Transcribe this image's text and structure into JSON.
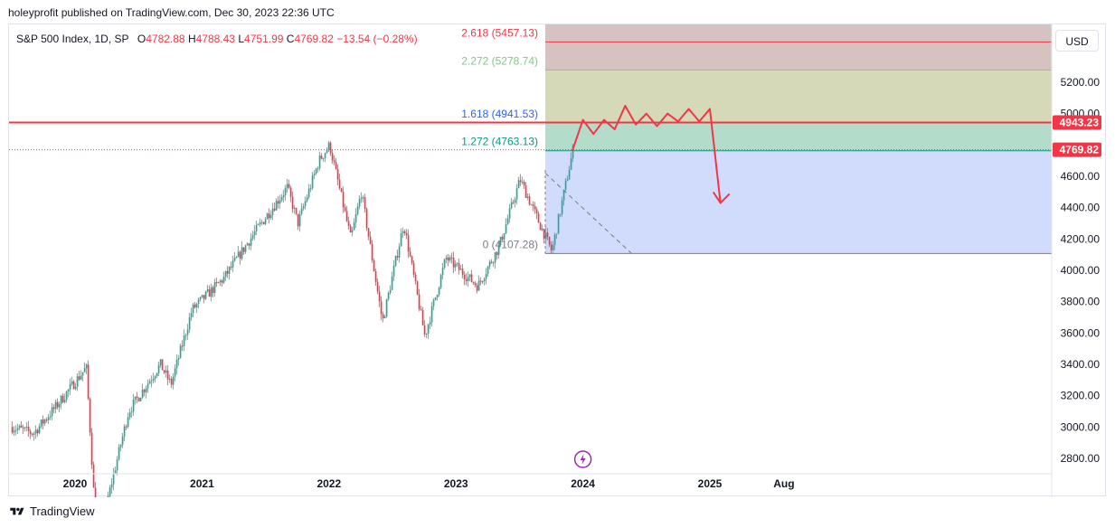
{
  "header": {
    "published": "holeyprofit published on TradingView.com, Dec 30, 2023 22:36 UTC"
  },
  "legend": {
    "symbol": "S&P 500 Index, 1D, SP",
    "open_label": "O",
    "open": "4782.88",
    "high_label": "H",
    "high": "4788.43",
    "low_label": "L",
    "low": "4751.99",
    "close_label": "C",
    "close": "4769.82",
    "change": "−13.54 (−0.28%)"
  },
  "currency_button": "USD",
  "footer": {
    "brand": "TradingView"
  },
  "colors": {
    "up": "#26a69a",
    "down": "#f23645",
    "fib_bg_top": "#d7c2c2",
    "fib_bg_olive": "#d5d9b7",
    "fib_bg_teal": "#b4dccb",
    "fib_bg_blue": "#d1dcfd",
    "projection": "#f23645",
    "fib_1618": "#2962ff"
  },
  "chart_data": {
    "type": "candlestick",
    "title": "S&P 500 Index, 1D, SP",
    "x_tick_labels": [
      "2020",
      "2021",
      "2022",
      "2023",
      "2024",
      "2025",
      "Aug"
    ],
    "y_tick_labels": [
      "2800.00",
      "3000.00",
      "3200.00",
      "3400.00",
      "3600.00",
      "3800.00",
      "4000.00",
      "4200.00",
      "4400.00",
      "4600.00",
      "4800.00",
      "5000.00",
      "5200.00"
    ],
    "ylim": [
      2700,
      5550
    ],
    "grid": false,
    "last_price": "4769.82",
    "horizontal_level": "4943.23",
    "fibonacci_levels": [
      {
        "ratio": "0",
        "label": "0 (4107.28)",
        "value": 4107.28
      },
      {
        "ratio": "1.272",
        "label": "1.272 (4763.13)",
        "value": 4763.13
      },
      {
        "ratio": "1.618",
        "label": "1.618 (4941.53)",
        "value": 4941.53
      },
      {
        "ratio": "2.272",
        "label": "2.272 (5278.74)",
        "value": 5278.74
      },
      {
        "ratio": "2.618",
        "label": "2.618 (5457.13)",
        "value": 5457.13
      }
    ],
    "price_path": [
      {
        "date": "2019-07",
        "value": 3000
      },
      {
        "date": "2019-09",
        "value": 2960
      },
      {
        "date": "2019-11",
        "value": 3120
      },
      {
        "date": "2020-02",
        "value": 3380
      },
      {
        "date": "2020-03",
        "value": 2250
      },
      {
        "date": "2020-06",
        "value": 3100
      },
      {
        "date": "2020-09",
        "value": 3400
      },
      {
        "date": "2020-10",
        "value": 3270
      },
      {
        "date": "2020-12",
        "value": 3750
      },
      {
        "date": "2021-03",
        "value": 3950
      },
      {
        "date": "2021-06",
        "value": 4250
      },
      {
        "date": "2021-09",
        "value": 4530
      },
      {
        "date": "2021-10",
        "value": 4300
      },
      {
        "date": "2021-12",
        "value": 4700
      },
      {
        "date": "2022-01",
        "value": 4800
      },
      {
        "date": "2022-03",
        "value": 4200
      },
      {
        "date": "2022-04",
        "value": 4500
      },
      {
        "date": "2022-06",
        "value": 3670
      },
      {
        "date": "2022-08",
        "value": 4300
      },
      {
        "date": "2022-10",
        "value": 3580
      },
      {
        "date": "2022-12",
        "value": 4080
      },
      {
        "date": "2023-03",
        "value": 3900
      },
      {
        "date": "2023-05",
        "value": 4150
      },
      {
        "date": "2023-07",
        "value": 4580
      },
      {
        "date": "2023-10",
        "value": 4120
      },
      {
        "date": "2023-12",
        "value": 4770
      }
    ],
    "projection_path": [
      {
        "date": "2023-12",
        "value": 4763
      },
      {
        "date": "2024-01",
        "value": 4960
      },
      {
        "date": "2024-02",
        "value": 4870
      },
      {
        "date": "2024-03",
        "value": 4960
      },
      {
        "date": "2024-04",
        "value": 4900
      },
      {
        "date": "2024-05",
        "value": 5050
      },
      {
        "date": "2024-06",
        "value": 4930
      },
      {
        "date": "2024-07",
        "value": 5000
      },
      {
        "date": "2024-08",
        "value": 4920
      },
      {
        "date": "2024-09",
        "value": 5000
      },
      {
        "date": "2024-10",
        "value": 4950
      },
      {
        "date": "2024-11",
        "value": 5030
      },
      {
        "date": "2024-12",
        "value": 4950
      },
      {
        "date": "2025-01",
        "value": 5030
      },
      {
        "date": "2025-02",
        "value": 4430
      }
    ]
  }
}
